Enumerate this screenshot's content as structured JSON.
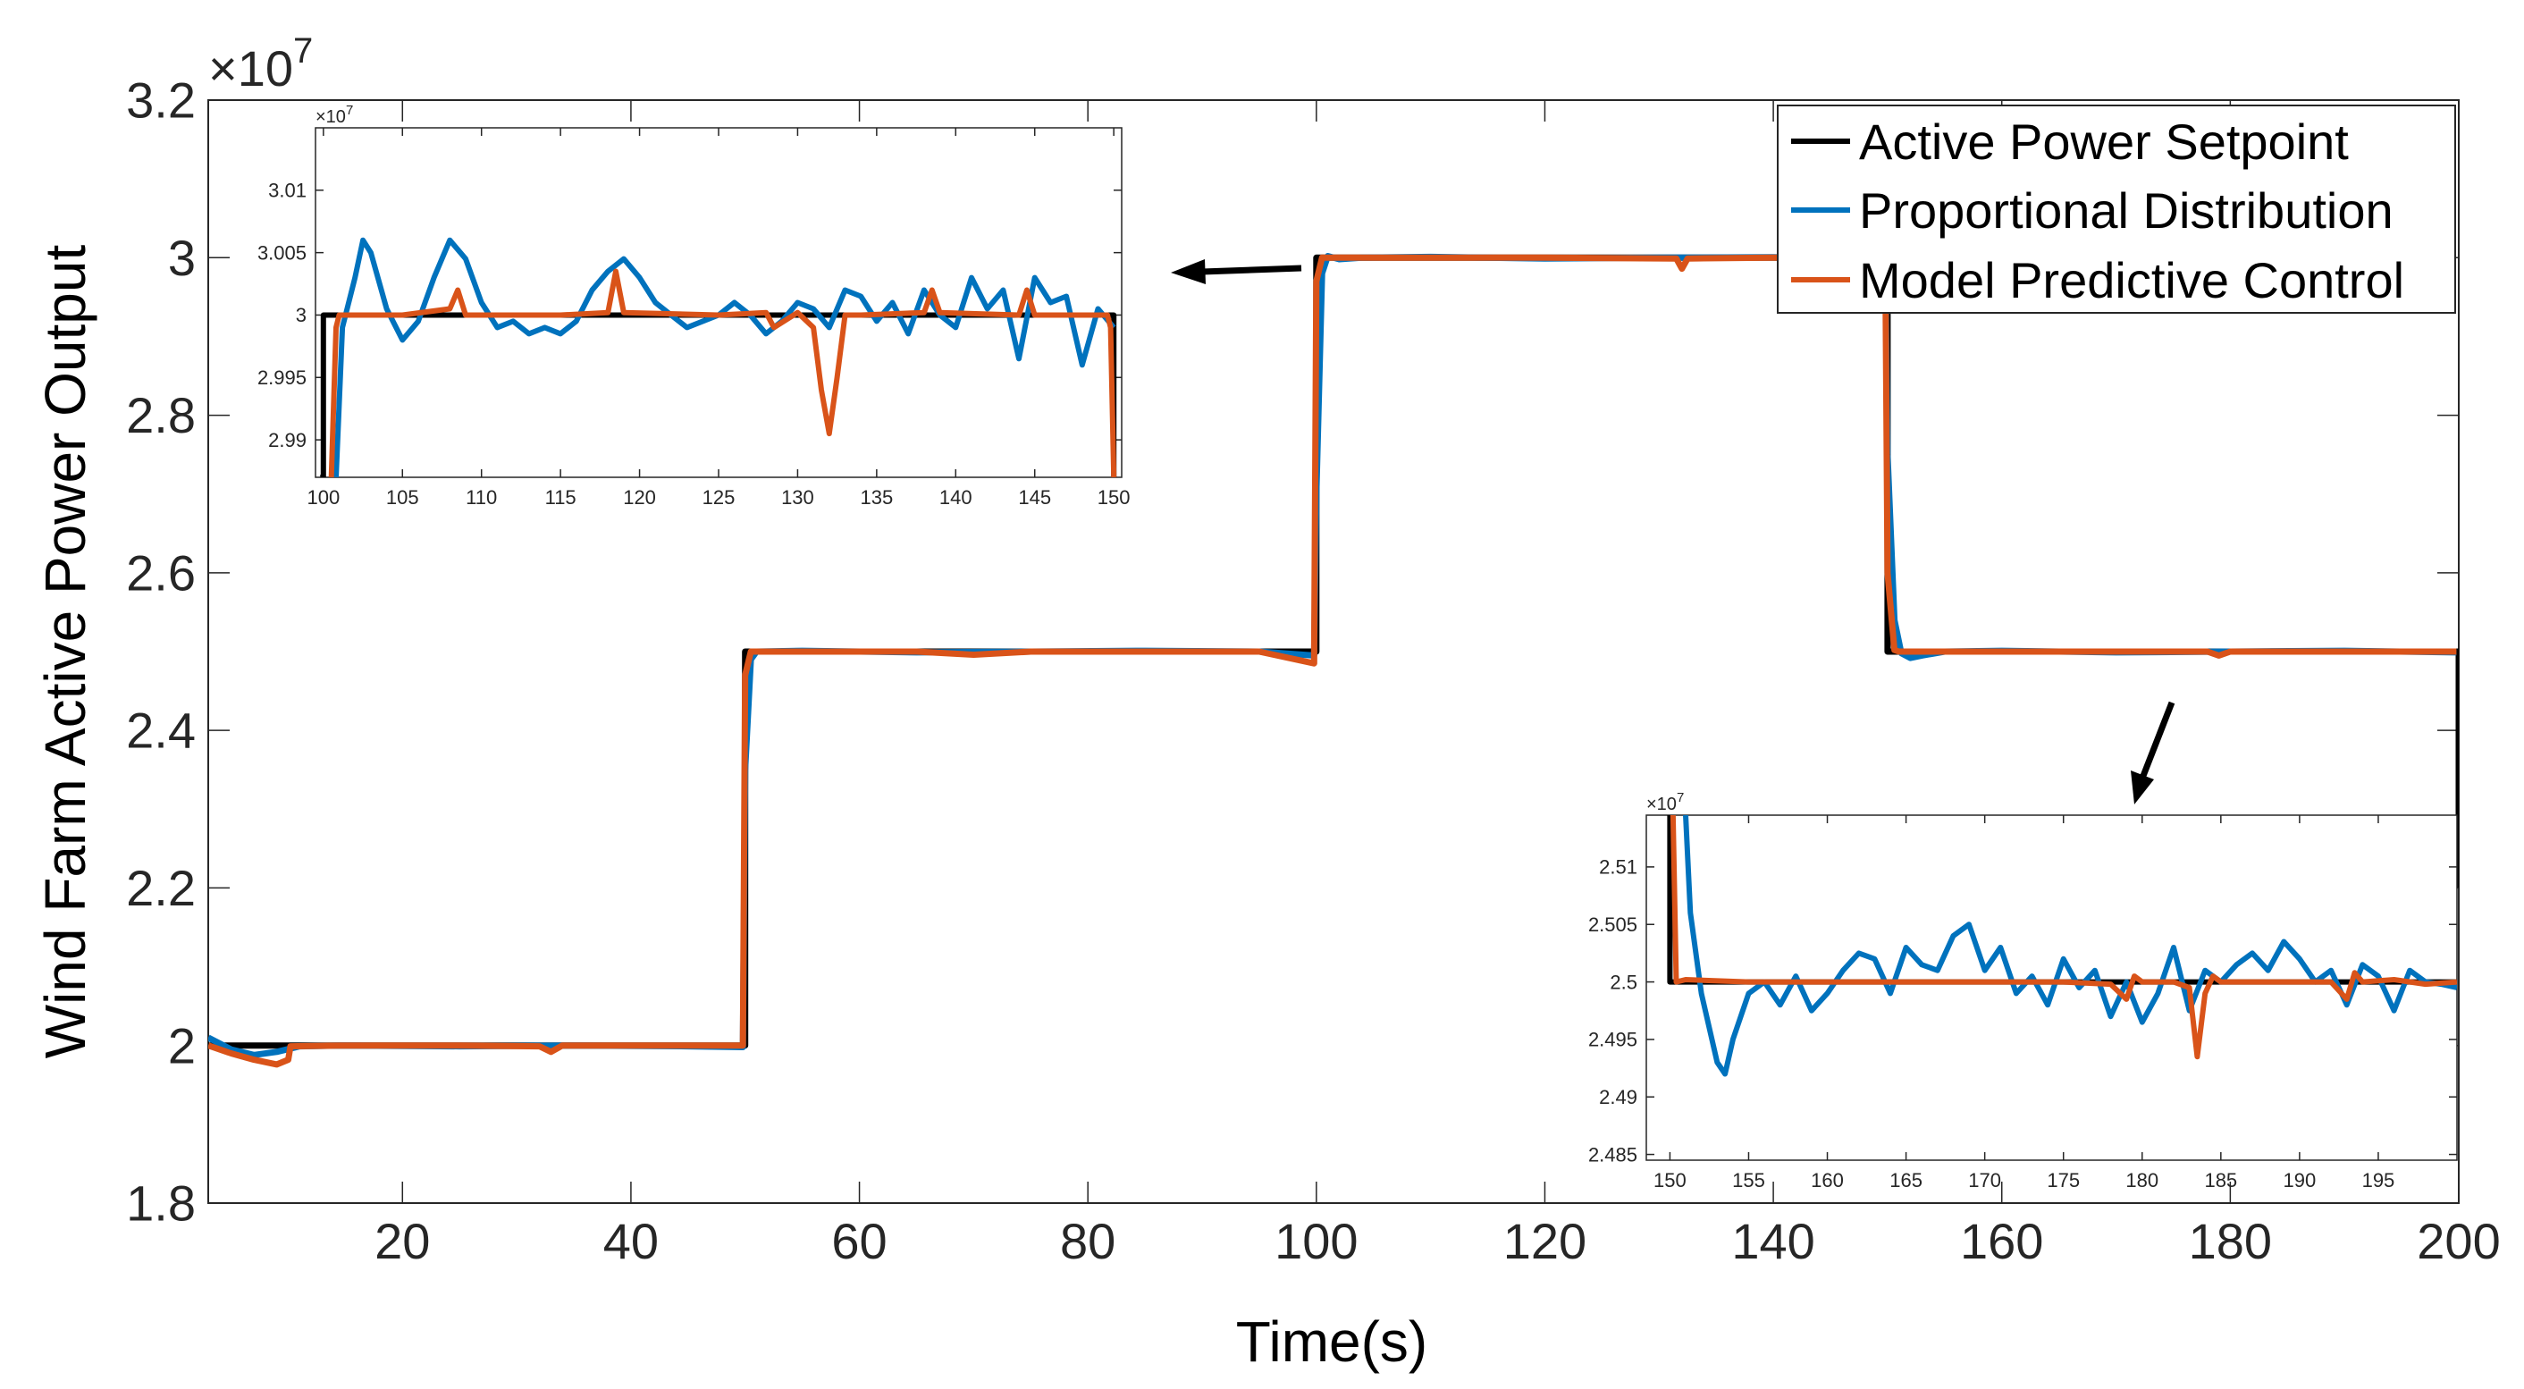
{
  "chart_data": {
    "type": "line",
    "xlabel": "Time(s)",
    "ylabel": "Wind Farm Active Power Output",
    "xlim": [
      3,
      200
    ],
    "ylim": [
      18000000,
      32000000
    ],
    "y_exponent_label": "×10",
    "y_exponent": "7",
    "x_ticks": [
      20,
      40,
      60,
      80,
      100,
      120,
      140,
      160,
      180,
      200
    ],
    "x_tick_labels": [
      "20",
      "40",
      "60",
      "80",
      "100",
      "120",
      "140",
      "160",
      "180",
      "200"
    ],
    "y_ticks": [
      18000000,
      20000000,
      22000000,
      24000000,
      26000000,
      28000000,
      30000000,
      32000000
    ],
    "y_tick_labels": [
      "1.8",
      "2",
      "2.2",
      "2.4",
      "2.6",
      "2.8",
      "3",
      "3.2"
    ],
    "legend": [
      "Active Power Setpoint",
      "Proportional Distribution",
      "Model Predictive Control"
    ],
    "legend_position": "top-right",
    "series": [
      {
        "name": "Active Power Setpoint",
        "color": "#000000",
        "x": [
          3,
          50,
          50,
          100,
          100,
          150,
          150,
          200,
          200
        ],
        "y": [
          20000000,
          20000000,
          25000000,
          25000000,
          30000000,
          30000000,
          25000000,
          25000000,
          22000000
        ]
      },
      {
        "name": "Proportional Distribution",
        "color": "#0072BD",
        "x": [
          3,
          5,
          7,
          9,
          11,
          15,
          25,
          35,
          45,
          49.8,
          50,
          50.5,
          51,
          55,
          65,
          75,
          85,
          95,
          99.8,
          100,
          100.5,
          101,
          102,
          104,
          110,
          120,
          130,
          140,
          149.8,
          150,
          150.6,
          151.2,
          152,
          153,
          155,
          160,
          170,
          180,
          190,
          199.8
        ],
        "y": [
          20100000,
          19950000,
          19880000,
          19920000,
          19990000,
          20000000,
          19990000,
          20000000,
          19990000,
          19980000,
          23500000,
          24900000,
          25000000,
          25010000,
          24990000,
          25000000,
          25010000,
          25000000,
          24950000,
          27000000,
          29800000,
          30020000,
          29980000,
          30000000,
          30010000,
          29990000,
          30000000,
          30005000,
          29980000,
          27500000,
          25400000,
          24980000,
          24920000,
          24950000,
          25000000,
          25010000,
          24990000,
          25000000,
          25010000,
          24990000
        ]
      },
      {
        "name": "Model Predictive Control",
        "color": "#D95319",
        "x": [
          3,
          5,
          7,
          9,
          10,
          10.2,
          15,
          25,
          32,
          33,
          34,
          45,
          49.8,
          50,
          50.5,
          55,
          65,
          70,
          75,
          85,
          95,
          99.8,
          100,
          100.5,
          101,
          110,
          120,
          131.5,
          132,
          132.5,
          140,
          149.8,
          150,
          150.6,
          151,
          160,
          170,
          178,
          179,
          180,
          190,
          199.8
        ],
        "y": [
          20000000,
          19900000,
          19820000,
          19760000,
          19820000,
          19990000,
          20000000,
          20000000,
          19990000,
          19920000,
          20000000,
          20000000,
          20000000,
          24700000,
          25000000,
          25000000,
          25000000,
          24960000,
          25000000,
          25000000,
          25000000,
          24850000,
          29700000,
          30000000,
          30000000,
          30000000,
          30000000,
          29990000,
          29860000,
          29990000,
          30000000,
          30000000,
          26000000,
          25020000,
          25000000,
          25000000,
          25000000,
          25000000,
          24950000,
          25000000,
          25000000,
          25000000
        ]
      }
    ],
    "insets": [
      {
        "position": "top-left",
        "xlim": [
          99.5,
          150.5
        ],
        "ylim": [
          29870000,
          30150000
        ],
        "y_exponent_label": "×10",
        "y_exponent": "7",
        "x_ticks": [
          100,
          105,
          110,
          115,
          120,
          125,
          130,
          135,
          140,
          145,
          150
        ],
        "x_tick_labels": [
          "100",
          "105",
          "110",
          "115",
          "120",
          "125",
          "130",
          "135",
          "140",
          "145",
          "150"
        ],
        "y_ticks": [
          29900000,
          29950000,
          30000000,
          30050000,
          30100000
        ],
        "y_tick_labels": [
          "2.99",
          "2.995",
          "3",
          "3.005",
          "3.01"
        ],
        "series": [
          {
            "name": "Active Power Setpoint",
            "color": "#000000",
            "x": [
              99.8,
              100,
              100,
              150,
              150
            ],
            "y": [
              29870000,
              29870000,
              30000000,
              30000000,
              29870000
            ]
          },
          {
            "name": "Proportional Distribution",
            "color": "#0072BD",
            "x": [
              100.8,
              101.2,
              102,
              102.5,
              103,
              104,
              105,
              106,
              107,
              108,
              109,
              110,
              111,
              112,
              113,
              114,
              115,
              116,
              117,
              118,
              119,
              120,
              121,
              122,
              123,
              124,
              125,
              126,
              127,
              128,
              129,
              130,
              131,
              132,
              133,
              134,
              135,
              136,
              137,
              138,
              139,
              140,
              141,
              142,
              143,
              144,
              145,
              146,
              147,
              148,
              149,
              150
            ],
            "y": [
              29870000,
              29990000,
              30030000,
              30060000,
              30050000,
              30005000,
              29980000,
              29995000,
              30030000,
              30060000,
              30045000,
              30010000,
              29990000,
              29995000,
              29985000,
              29990000,
              29985000,
              29995000,
              30020000,
              30035000,
              30045000,
              30030000,
              30010000,
              30000000,
              29990000,
              29995000,
              30000000,
              30010000,
              30000000,
              29985000,
              29995000,
              30010000,
              30005000,
              29990000,
              30020000,
              30015000,
              29995000,
              30010000,
              29985000,
              30020000,
              30000000,
              29990000,
              30030000,
              30005000,
              30020000,
              29965000,
              30030000,
              30010000,
              30015000,
              29960000,
              30005000,
              29990000
            ]
          },
          {
            "name": "Model Predictive Control",
            "color": "#D95319",
            "x": [
              100.5,
              100.8,
              101,
              105,
              108,
              108.5,
              109,
              115,
              118,
              118.5,
              119,
              125,
              128,
              128.5,
              130,
              131,
              131.5,
              132,
              132.5,
              133,
              134,
              138,
              138.5,
              139,
              144,
              144.5,
              145,
              149.6,
              149.8,
              150
            ],
            "y": [
              29870000,
              29990000,
              30000000,
              30000000,
              30005000,
              30020000,
              30000000,
              30000000,
              30002000,
              30035000,
              30002000,
              30000000,
              30002000,
              29990000,
              30002000,
              29990000,
              29940000,
              29905000,
              29950000,
              30000000,
              30000000,
              30002000,
              30020000,
              30002000,
              30000000,
              30020000,
              30000000,
              30000000,
              29990000,
              29870000
            ]
          }
        ]
      },
      {
        "position": "bottom-right",
        "xlim": [
          148.5,
          200
        ],
        "ylim": [
          24845000,
          25145000
        ],
        "y_exponent_label": "×10",
        "y_exponent": "7",
        "x_ticks": [
          150,
          155,
          160,
          165,
          170,
          175,
          180,
          185,
          190,
          195
        ],
        "x_tick_labels": [
          "150",
          "155",
          "160",
          "165",
          "170",
          "175",
          "180",
          "185",
          "190",
          "195"
        ],
        "y_ticks": [
          24850000,
          24900000,
          24950000,
          25000000,
          25050000,
          25100000
        ],
        "y_tick_labels": [
          "2.485",
          "2.49",
          "2.495",
          "2.5",
          "2.505",
          "2.51"
        ],
        "series": [
          {
            "name": "Active Power Setpoint",
            "color": "#000000",
            "x": [
              150,
              150,
              200
            ],
            "y": [
              25145000,
              25000000,
              25000000
            ]
          },
          {
            "name": "Proportional Distribution",
            "color": "#0072BD",
            "x": [
              151,
              151.3,
              152,
              153,
              153.5,
              154,
              155,
              156,
              157,
              158,
              159,
              160,
              161,
              162,
              163,
              164,
              165,
              166,
              167,
              168,
              169,
              170,
              171,
              172,
              173,
              174,
              175,
              176,
              177,
              178,
              179,
              180,
              181,
              182,
              183,
              184,
              185,
              186,
              187,
              188,
              189,
              190,
              191,
              192,
              193,
              194,
              195,
              196,
              197,
              198,
              199,
              200
            ],
            "y": [
              25145000,
              25060000,
              24990000,
              24930000,
              24920000,
              24950000,
              24990000,
              25000000,
              24980000,
              25005000,
              24975000,
              24990000,
              25010000,
              25025000,
              25020000,
              24990000,
              25030000,
              25015000,
              25010000,
              25040000,
              25050000,
              25010000,
              25030000,
              24990000,
              25005000,
              24980000,
              25020000,
              24995000,
              25010000,
              24970000,
              25000000,
              24965000,
              24990000,
              25030000,
              24975000,
              25010000,
              25000000,
              25015000,
              25025000,
              25010000,
              25035000,
              25020000,
              25000000,
              25010000,
              24980000,
              25015000,
              25005000,
              24975000,
              25010000,
              25000000,
              24998000,
              24995000
            ]
          },
          {
            "name": "Model Predictive Control",
            "color": "#D95319",
            "x": [
              150.2,
              150.4,
              151,
              155,
              160,
              165,
              170,
              175,
              178,
              179,
              179.5,
              180,
              182,
              183,
              183.5,
              184,
              184.5,
              185,
              190,
              192,
              193,
              193.5,
              194,
              196,
              198,
              200
            ],
            "y": [
              25145000,
              25000000,
              25002000,
              25000000,
              25000000,
              25000000,
              25000000,
              25000000,
              24998000,
              24985000,
              25005000,
              25000000,
              25000000,
              24995000,
              24935000,
              24990000,
              25005000,
              25000000,
              25000000,
              25000000,
              24985000,
              25008000,
              25000000,
              25002000,
              24998000,
              25000000
            ]
          }
        ]
      }
    ]
  }
}
